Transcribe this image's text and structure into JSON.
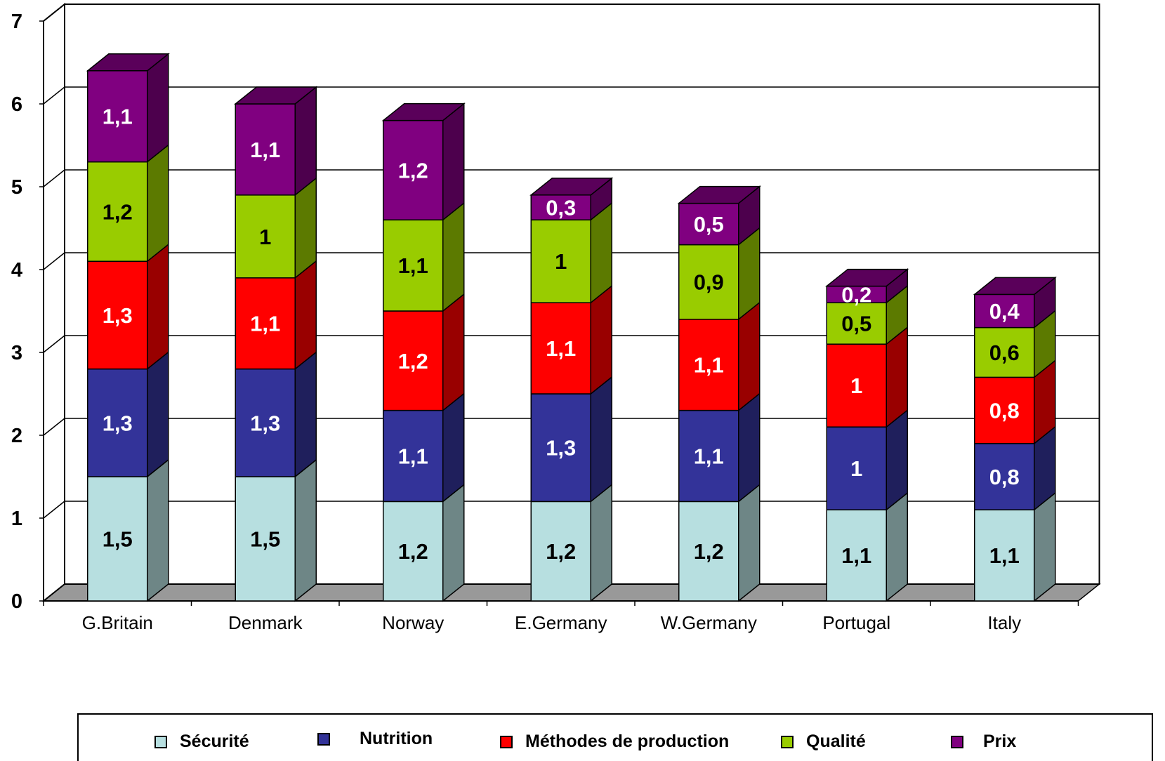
{
  "chart_data": {
    "type": "bar",
    "stacked": true,
    "three_d": true,
    "categories": [
      "G.Britain",
      "Denmark",
      "Norway",
      "E.Germany",
      "W.Germany",
      "Portugal",
      "Italy"
    ],
    "series": [
      {
        "name": "Sécurité",
        "color": "#b7dfe0",
        "label_color": "#000000",
        "values": [
          1.5,
          1.5,
          1.2,
          1.2,
          1.2,
          1.1,
          1.1
        ],
        "labels": [
          "1,5",
          "1,5",
          "1,2",
          "1,2",
          "1,2",
          "1,1",
          "1,1"
        ]
      },
      {
        "name": "Nutrition",
        "color": "#333399",
        "label_color": "#ffffff",
        "values": [
          1.3,
          1.3,
          1.1,
          1.3,
          1.1,
          1,
          0.8
        ],
        "labels": [
          "1,3",
          "1,3",
          "1,1",
          "1,3",
          "1,1",
          "1",
          "0,8"
        ]
      },
      {
        "name": "Méthodes de production",
        "color": "#ff0000",
        "label_color": "#ffffff",
        "values": [
          1.3,
          1.1,
          1.2,
          1.1,
          1.1,
          1,
          0.8
        ],
        "labels": [
          "1,3",
          "1,1",
          "1,2",
          "1,1",
          "1,1",
          "1",
          "0,8"
        ]
      },
      {
        "name": "Qualité",
        "color": "#99cc00",
        "label_color": "#000000",
        "values": [
          1.2,
          1,
          1.1,
          1,
          0.9,
          0.5,
          0.6
        ],
        "labels": [
          "1,2",
          "1",
          "1,1",
          "1",
          "0,9",
          "0,5",
          "0,6"
        ]
      },
      {
        "name": "Prix",
        "color": "#800080",
        "label_color": "#ffffff",
        "values": [
          1.1,
          1.1,
          1.2,
          0.3,
          0.5,
          0.2,
          0.4
        ],
        "labels": [
          "1,1",
          "1,1",
          "1,2",
          "0,3",
          "0,5",
          "0,2",
          "0,4"
        ]
      }
    ],
    "yticks": [
      "0",
      "1",
      "2",
      "3",
      "4",
      "5",
      "6",
      "7"
    ],
    "ylim": [
      0,
      7
    ],
    "grid": true,
    "legend_position": "bottom"
  }
}
